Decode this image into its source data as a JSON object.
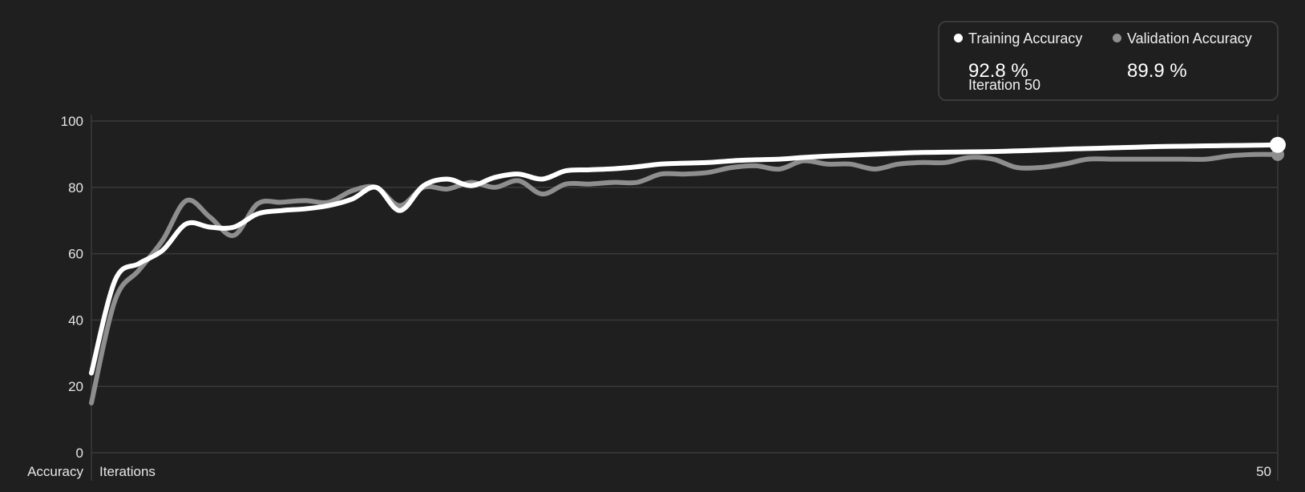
{
  "colors": {
    "background": "#1f1f1f",
    "grid": "#3a3a3a",
    "training": "#ffffff",
    "validation": "#8e8e8e",
    "text": "#e6e6e6"
  },
  "legend": {
    "training_label": "Training Accuracy",
    "training_value": "92.8 %",
    "validation_label": "Validation Accuracy",
    "validation_value": "89.9 %",
    "iteration_label": "Iteration 50"
  },
  "chart_data": {
    "type": "line",
    "title": "",
    "ylabel": "Accuracy",
    "xlabel": "Iterations",
    "x_tick_labels": [
      "50"
    ],
    "y_ticks": [
      0,
      20,
      40,
      60,
      80,
      100
    ],
    "ylim": [
      0,
      100
    ],
    "xlim": [
      0,
      50
    ],
    "grid": true,
    "legend_position": "top-right",
    "x": [
      0,
      1,
      2,
      3,
      4,
      5,
      6,
      7,
      8,
      9,
      10,
      11,
      12,
      13,
      14,
      15,
      16,
      17,
      18,
      19,
      20,
      21,
      22,
      23,
      24,
      25,
      26,
      27,
      28,
      29,
      30,
      31,
      32,
      33,
      34,
      35,
      36,
      37,
      38,
      39,
      40,
      41,
      42,
      43,
      44,
      45,
      46,
      47,
      48,
      49,
      50
    ],
    "series": [
      {
        "name": "Training Accuracy",
        "color": "#ffffff",
        "values": [
          24,
          52,
          57,
          61,
          69,
          68,
          68,
          72,
          73,
          73.5,
          74.5,
          76.5,
          80,
          73,
          80.5,
          82.5,
          80.5,
          83,
          84,
          82.5,
          85,
          85.3,
          85.6,
          86.2,
          87,
          87.3,
          87.5,
          88,
          88.3,
          88.5,
          89,
          89.4,
          89.7,
          90,
          90.3,
          90.5,
          90.6,
          90.7,
          90.8,
          91,
          91.2,
          91.5,
          91.7,
          91.9,
          92.1,
          92.3,
          92.4,
          92.5,
          92.6,
          92.7,
          92.8
        ]
      },
      {
        "name": "Validation Accuracy",
        "color": "#8e8e8e",
        "values": [
          15,
          46,
          55,
          64,
          76,
          71,
          65.5,
          75,
          75.5,
          76,
          75.5,
          79,
          80,
          74.5,
          80,
          79.5,
          81.5,
          80,
          82,
          78,
          81,
          81,
          81.5,
          81.5,
          84,
          84,
          84.5,
          86,
          86.5,
          85.5,
          88,
          87,
          87,
          85.5,
          87,
          87.5,
          87.5,
          89,
          88.5,
          86,
          86,
          87,
          88.5,
          88.5,
          88.5,
          88.5,
          88.5,
          88.5,
          89.5,
          89.9,
          89.9
        ]
      }
    ]
  }
}
